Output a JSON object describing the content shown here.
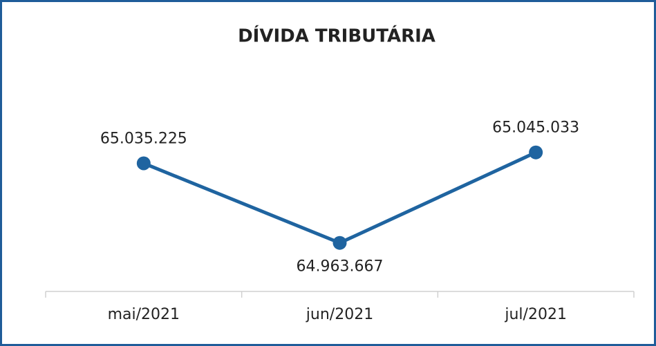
{
  "chart_data": {
    "type": "line",
    "title": "DÍVIDA TRIBUTÁRIA",
    "categories": [
      "mai/2021",
      "jun/2021",
      "jul/2021"
    ],
    "values": [
      65035225,
      64963667,
      65045033
    ],
    "value_labels": [
      "65.035.225",
      "64.963.667",
      "65.045.033"
    ],
    "color": "#1f64a0",
    "ylim": [
      64920000,
      65120000
    ]
  }
}
